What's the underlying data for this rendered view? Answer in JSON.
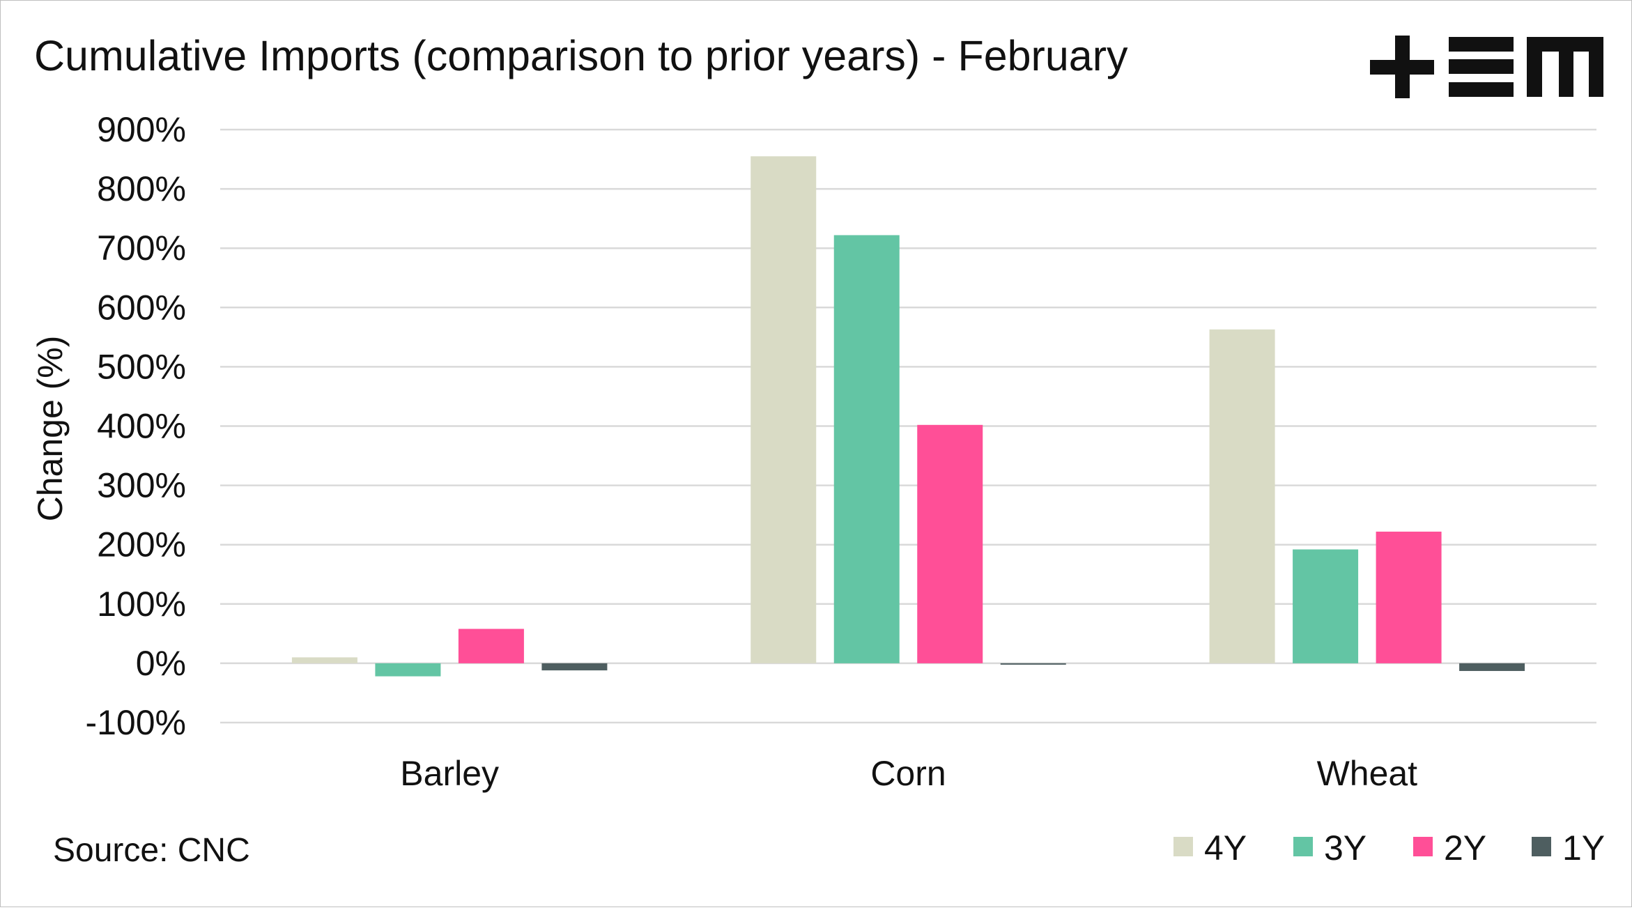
{
  "chart_data": {
    "type": "bar",
    "title": "Cumulative Imports (comparison to prior years) - February",
    "ylabel": "Change (%)",
    "xlabel": "",
    "categories": [
      "Barley",
      "Corn",
      "Wheat"
    ],
    "ylim": [
      -100,
      900
    ],
    "ytick_values": [
      -100,
      0,
      100,
      200,
      300,
      400,
      500,
      600,
      700,
      800,
      900
    ],
    "ytick_labels": [
      "-100%",
      "0%",
      "100%",
      "200%",
      "300%",
      "400%",
      "500%",
      "600%",
      "700%",
      "800%",
      "900%"
    ],
    "series": [
      {
        "name": "4Y",
        "color": "#d9dbc5",
        "values": [
          10,
          855,
          563
        ]
      },
      {
        "name": "3Y",
        "color": "#63c5a4",
        "values": [
          -22,
          722,
          192
        ]
      },
      {
        "name": "2Y",
        "color": "#ff4f97",
        "values": [
          58,
          402,
          222
        ]
      },
      {
        "name": "1Y",
        "color": "#4e5e60",
        "values": [
          -12,
          -2,
          -13
        ]
      }
    ],
    "grid": true,
    "legend_position": "bottom-right",
    "source": "Source: CNC"
  },
  "logo": {
    "text": "+EM",
    "icon": "tem-logo-icon"
  }
}
